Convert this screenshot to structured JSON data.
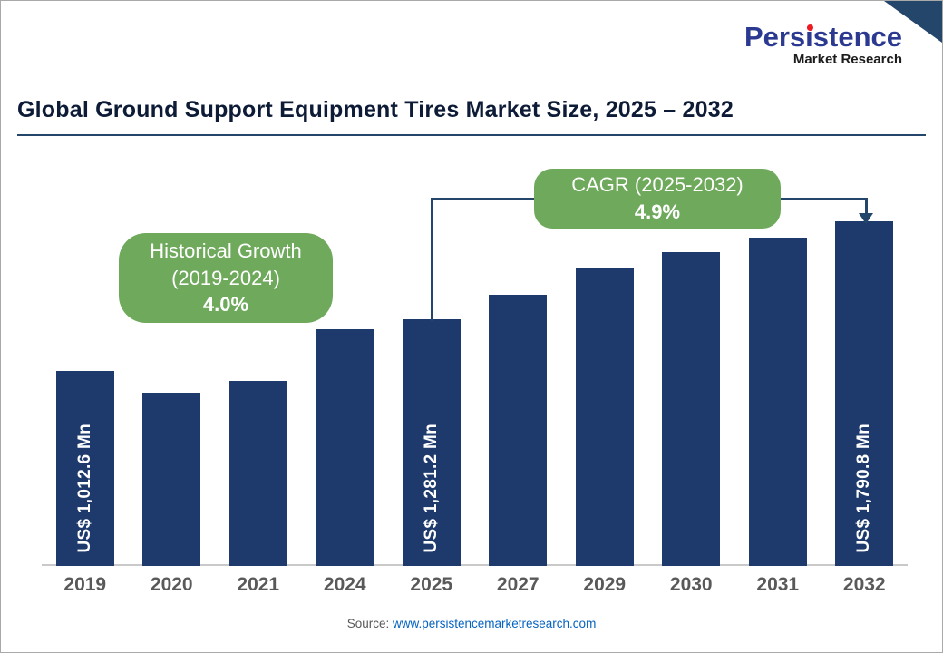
{
  "logo": {
    "brand": "Persistence",
    "sub": "Market Research"
  },
  "title": "Global Ground Support Equipment Tires Market Size, 2025 – 2032",
  "callouts": {
    "historical": {
      "line1": "Historical Growth",
      "line2": "(2019-2024)",
      "value": "4.0%"
    },
    "cagr": {
      "line1": "CAGR (2025-2032)",
      "value": "4.9%"
    }
  },
  "source": {
    "label": "Source:",
    "link": "www.persistencemarketresearch.com"
  },
  "colors": {
    "bar": "#1e3a6d",
    "green": "#6fa95c",
    "navy_line": "#24466b",
    "title": "#0d1b36",
    "axis": "#595959",
    "link": "#0563c1",
    "logo_blue": "#2b3990",
    "logo_red": "#ed1c24"
  },
  "chart_data": {
    "type": "bar",
    "title": "Global Ground Support Equipment Tires Market Size, 2025 – 2032",
    "unit": "US$ Mn",
    "categories": [
      "2019",
      "2020",
      "2021",
      "2024",
      "2025",
      "2027",
      "2029",
      "2030",
      "2031",
      "2032"
    ],
    "values": [
      1012.6,
      900,
      960,
      1230,
      1281.2,
      1410,
      1550,
      1630,
      1705,
      1790.8
    ],
    "bar_labels": [
      "US$ 1,012.6 Mn",
      "",
      "",
      "",
      "US$ 1,281.2 Mn",
      "",
      "",
      "",
      "",
      "US$ 1,790.8 Mn"
    ],
    "labeled_values": {
      "2019": "US$ 1,012.6 Mn",
      "2025": "US$ 1,281.2 Mn",
      "2032": "US$ 1,790.8 Mn"
    },
    "annotations": [
      {
        "text": "Historical Growth (2019-2024) 4.0%",
        "range": "2019-2024"
      },
      {
        "text": "CAGR (2025-2032) 4.9%",
        "range": "2025-2032"
      }
    ],
    "xlabel": "",
    "ylabel": "",
    "ylim": [
      0,
      1790.8
    ],
    "grid": false,
    "legend": false
  }
}
